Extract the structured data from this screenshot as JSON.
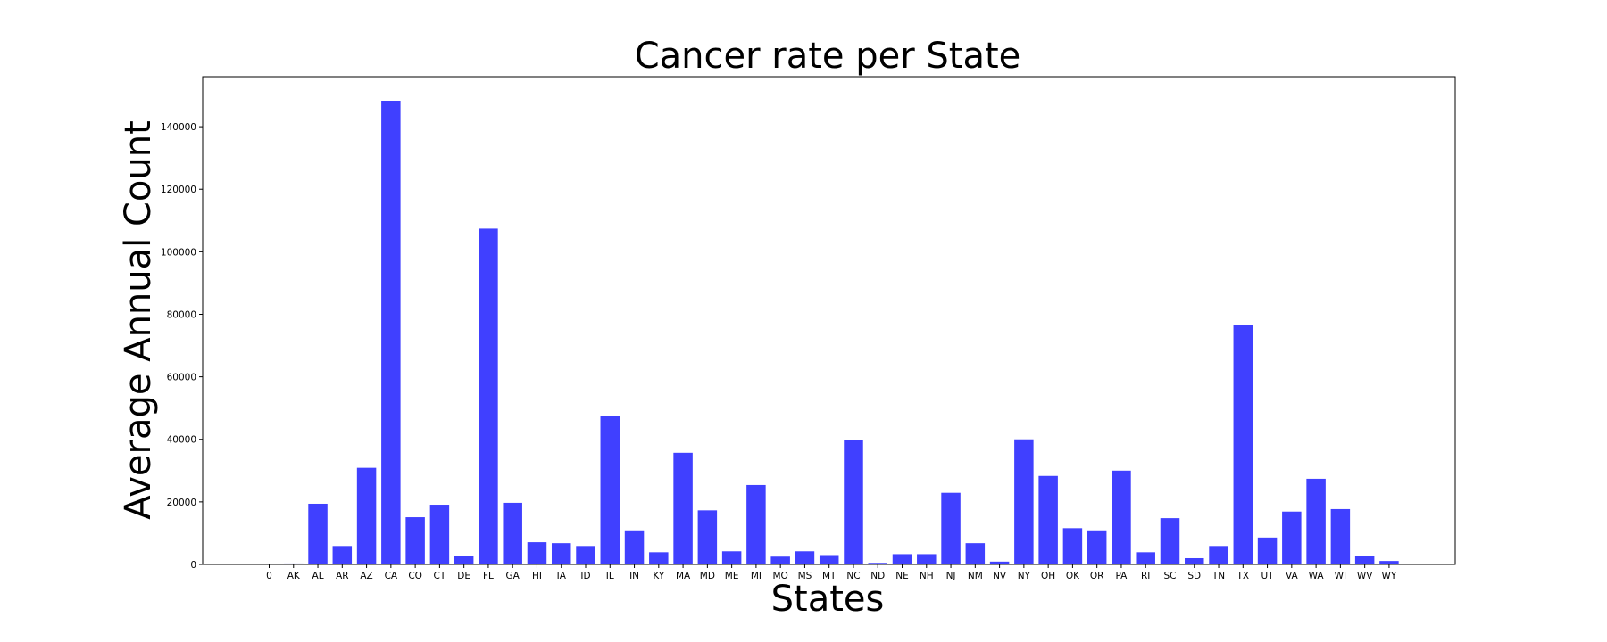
{
  "chart_data": {
    "type": "bar",
    "title": "Cancer rate per State",
    "xlabel": "States",
    "ylabel": "Average Annual Count",
    "ylim": [
      0,
      156000
    ],
    "yticks": [
      0,
      20000,
      40000,
      60000,
      80000,
      100000,
      120000,
      140000
    ],
    "categories": [
      "0",
      "AK",
      "AL",
      "AR",
      "AZ",
      "CA",
      "CO",
      "CT",
      "DE",
      "FL",
      "GA",
      "HI",
      "IA",
      "ID",
      "IL",
      "IN",
      "KY",
      "MA",
      "MD",
      "ME",
      "MI",
      "MO",
      "MS",
      "MT",
      "NC",
      "ND",
      "NE",
      "NH",
      "NJ",
      "NM",
      "NV",
      "NY",
      "OH",
      "OK",
      "OR",
      "PA",
      "RI",
      "SC",
      "SD",
      "TN",
      "TX",
      "UT",
      "VA",
      "WA",
      "WI",
      "WV",
      "WY"
    ],
    "values": [
      0,
      300,
      19400,
      5900,
      30900,
      148300,
      15100,
      19100,
      2700,
      107400,
      19700,
      7100,
      6800,
      5900,
      47400,
      10900,
      3900,
      35700,
      17300,
      4200,
      25400,
      2500,
      4200,
      3000,
      39700,
      500,
      3300,
      3300,
      22900,
      6800,
      900,
      40000,
      28300,
      11600,
      10900,
      30000,
      3900,
      14800,
      2000,
      5900,
      76600,
      8600,
      16900,
      27400,
      17700,
      2600,
      1100
    ],
    "bar_color": "#4040ff",
    "grid": false
  }
}
